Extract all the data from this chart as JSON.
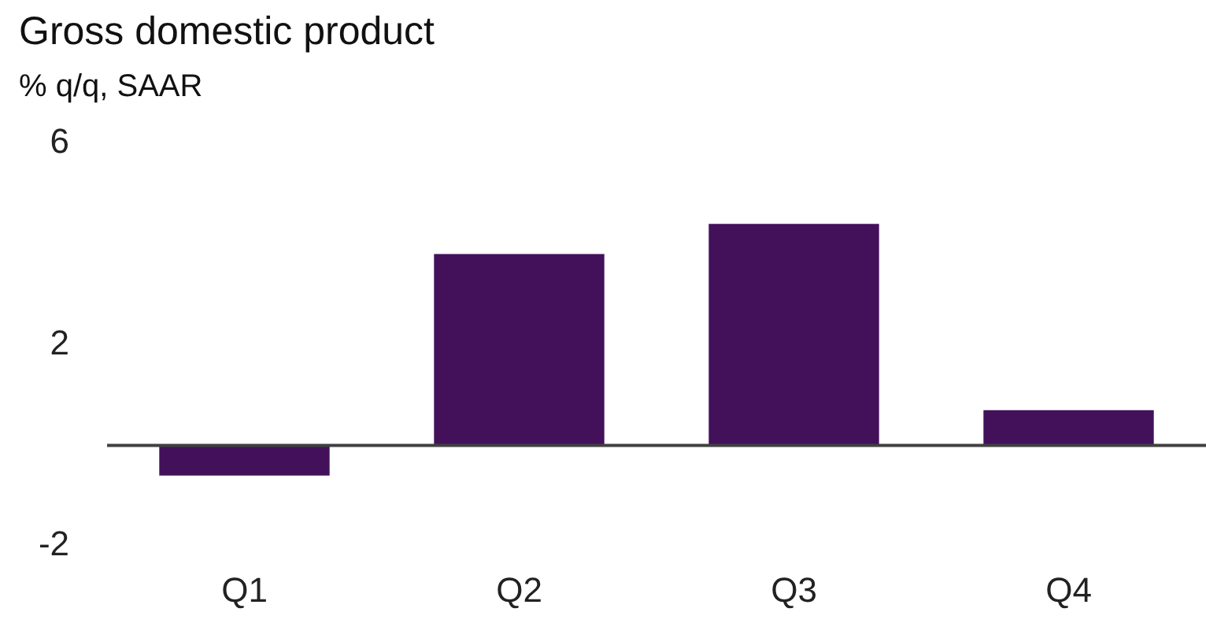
{
  "chart_data": {
    "type": "bar",
    "title": "Gross domestic product",
    "subtitle": "% q/q, SAAR",
    "categories": [
      "Q1",
      "Q2",
      "Q3",
      "Q4"
    ],
    "values": [
      -0.6,
      3.8,
      4.4,
      0.7
    ],
    "color": "#43115a",
    "ylim": [
      -2,
      6
    ],
    "yticks": [
      -2,
      2,
      6
    ],
    "grid": false,
    "legend": false,
    "ref_lines": [
      {
        "axis": "y",
        "value": 0,
        "color": "#404040"
      }
    ]
  }
}
